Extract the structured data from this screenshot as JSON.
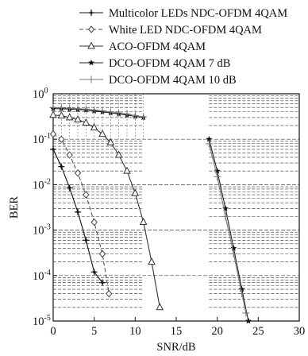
{
  "chart_data": {
    "type": "line",
    "xlabel": "SNR/dB",
    "ylabel": "BER",
    "xlim": [
      0,
      30
    ],
    "ylim": [
      1e-05,
      1
    ],
    "y_scale": "log",
    "grid": "partial dashed grid (log minor lines)",
    "legend_position": "top-right, above plot",
    "x_ticks": [
      "0",
      "5",
      "10",
      "15",
      "20",
      "25",
      "30"
    ],
    "y_ticks": [
      {
        "base": "10",
        "exp": "0",
        "value": 1
      },
      {
        "base": "10",
        "exp": "-1",
        "value": 0.1
      },
      {
        "base": "10",
        "exp": "-2",
        "value": 0.01
      },
      {
        "base": "10",
        "exp": "-3",
        "value": 0.001
      },
      {
        "base": "10",
        "exp": "-4",
        "value": 0.0001
      },
      {
        "base": "10",
        "exp": "-5",
        "value": 1e-05
      }
    ],
    "series": [
      {
        "name": "Multicolor LEDs NDC-OFDM 4QAM",
        "marker": "plus",
        "x": [
          0,
          1,
          2,
          3,
          4,
          5,
          6
        ],
        "y": [
          0.06,
          0.025,
          0.0085,
          0.0025,
          0.0006,
          0.00012,
          7e-05
        ]
      },
      {
        "name": "White LED NDC-OFDM 4QAM",
        "marker": "diamond",
        "x": [
          0,
          1,
          2,
          3,
          4,
          5,
          6,
          6.8
        ],
        "y": [
          0.13,
          0.1,
          0.045,
          0.018,
          0.006,
          0.0015,
          0.0003,
          4e-05
        ]
      },
      {
        "name": "ACO-OFDM 4QAM",
        "marker": "triangle",
        "x": [
          0,
          1,
          2,
          3,
          4,
          5,
          6,
          7,
          8,
          9,
          10,
          11,
          12,
          13
        ],
        "y": [
          0.34,
          0.33,
          0.3,
          0.27,
          0.23,
          0.18,
          0.13,
          0.085,
          0.045,
          0.02,
          0.0065,
          0.0015,
          0.0002,
          2e-05
        ]
      },
      {
        "name": "DCO-OFDM 4QAM 7 dB",
        "marker": "star",
        "x": [
          0,
          1,
          2,
          3,
          4,
          5,
          6,
          7,
          8,
          9,
          10,
          11,
          19,
          20,
          21,
          22,
          23,
          23.8
        ],
        "y": [
          0.47,
          0.47,
          0.46,
          0.45,
          0.44,
          0.42,
          0.4,
          0.38,
          0.36,
          0.34,
          0.32,
          0.3,
          0.1,
          0.02,
          0.003,
          0.0004,
          5e-05,
          1e-05
        ]
      },
      {
        "name": "DCO-OFDM 4QAM 10 dB",
        "marker": "thinplus",
        "x": [
          0,
          1,
          2,
          3,
          4,
          5,
          6,
          7,
          8,
          9,
          10,
          11,
          19,
          20,
          21,
          22,
          23,
          23.5
        ],
        "y": [
          0.5,
          0.49,
          0.48,
          0.47,
          0.46,
          0.44,
          0.42,
          0.4,
          0.38,
          0.36,
          0.33,
          0.31,
          0.08,
          0.015,
          0.002,
          0.0003,
          4e-05,
          1.5e-05
        ]
      }
    ]
  }
}
